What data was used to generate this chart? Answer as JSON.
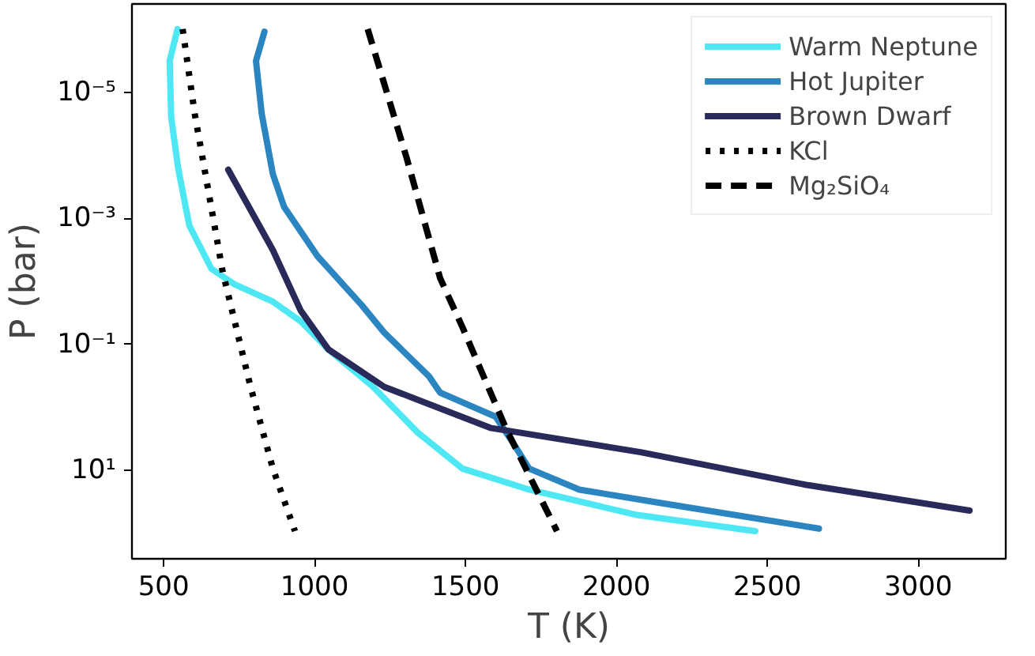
{
  "chart_data": {
    "type": "line",
    "xlabel": "T (K)",
    "ylabel": "P (bar)",
    "log": "y",
    "grid": false,
    "legend": "top right",
    "line_style": "solid",
    "marker": "none",
    "xlim": [
      395,
      3290
    ],
    "xticks": [
      500,
      1000,
      1500,
      2000,
      2500,
      3000
    ],
    "ylim": [
      250,
      4e-07
    ],
    "yticks": [
      {
        "value": 1e-05,
        "label": "10⁻⁵"
      },
      {
        "value": 0.001,
        "label": "10⁻³"
      },
      {
        "value": 0.1,
        "label": "10⁻¹"
      },
      {
        "value": 10,
        "label": "10¹"
      }
    ],
    "series": [
      {
        "name": "Warm Neptune",
        "color": "#4de8f4",
        "x": [
          546,
          520,
          525,
          548,
          585,
          658,
          733,
          862,
          954,
          1046,
          1194,
          1342,
          1490,
          1711,
          2063,
          2460
        ],
        "values": [
          1e-06,
          3.2e-06,
          2.5e-05,
          0.00016,
          0.0013,
          0.0063,
          0.011,
          0.021,
          0.043,
          0.12,
          0.47,
          2.5,
          9.3,
          20,
          50,
          91
        ]
      },
      {
        "name": "Hot Jupiter",
        "color": "#2a85c0",
        "x": [
          834,
          806,
          825,
          862,
          899,
          1010,
          1157,
          1231,
          1379,
          1416,
          1600,
          1650,
          1711,
          1877,
          2136,
          2671
        ],
        "values": [
          1.1e-06,
          3.2e-06,
          2.2e-05,
          0.0002,
          0.00066,
          0.004,
          0.024,
          0.065,
          0.32,
          0.58,
          1.4,
          3.2,
          9.3,
          20,
          32,
          83
        ]
      },
      {
        "name": "Brown Dwarf",
        "color": "#2a2a5a",
        "x": [
          714,
          862,
          954,
          1046,
          1231,
          1582,
          2080,
          2634,
          3170
        ],
        "values": [
          0.00017,
          0.0032,
          0.029,
          0.12,
          0.47,
          2.1,
          5.1,
          17,
          43
        ]
      },
      {
        "name": "KCl",
        "color": "#000000",
        "line_style": "dotted",
        "x": [
          563,
          603,
          696,
          788,
          862,
          935
        ],
        "values": [
          1e-06,
          2.2e-05,
          0.0072,
          0.47,
          9.3,
          91
        ]
      },
      {
        "name": "Mg₂SiO₄",
        "color": "#000000",
        "line_style": "dashed",
        "x": [
          1176,
          1305,
          1416,
          1489,
          1637,
          1803
        ],
        "values": [
          1e-06,
          0.00011,
          0.0089,
          0.052,
          2.3,
          91
        ]
      }
    ]
  }
}
